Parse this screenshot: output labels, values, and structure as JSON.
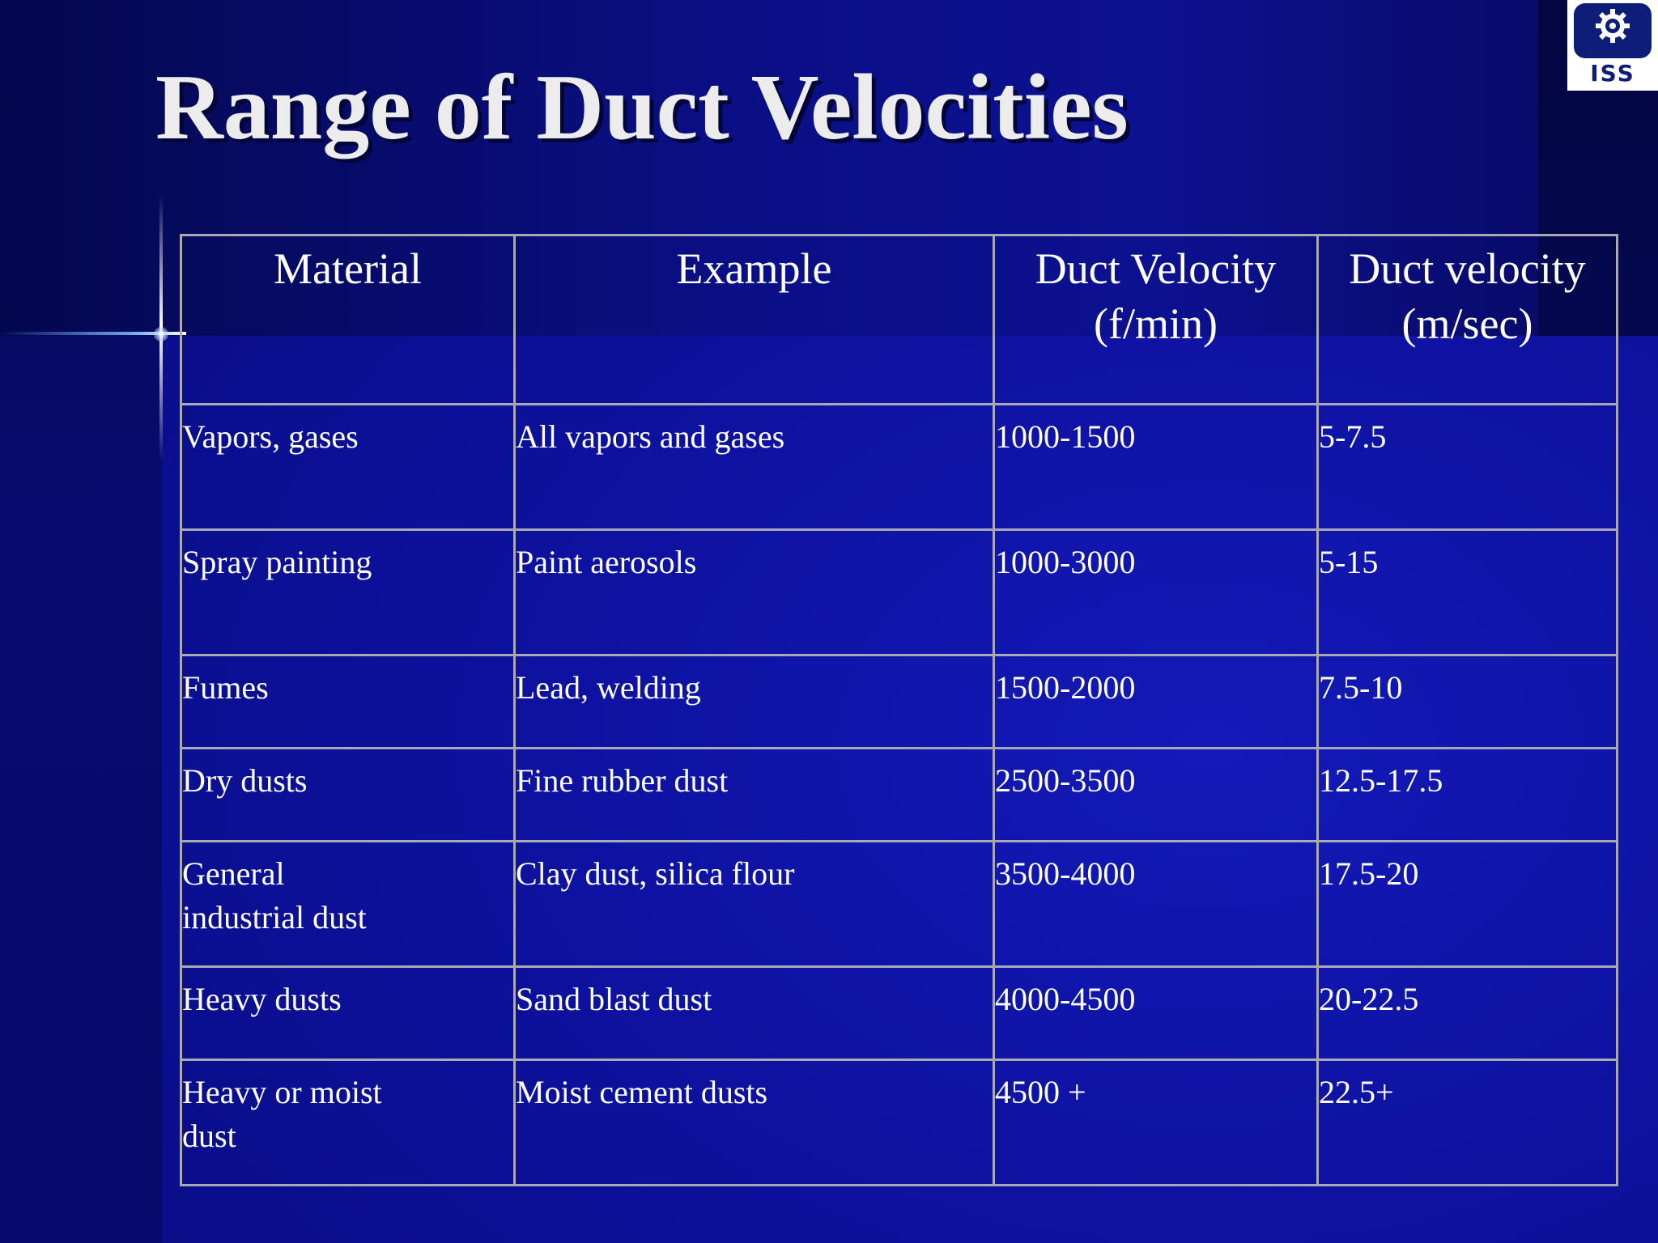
{
  "slide": {
    "title": "Range of Duct Velocities",
    "logo": {
      "text": "ISS",
      "icon": "gear-icon"
    },
    "colors": {
      "background": "#0d12a0",
      "title": "#ececec",
      "text": "#ffffff",
      "grid": "#a9a9b6"
    }
  },
  "table": {
    "headers": {
      "material": "Material",
      "example": "Example",
      "fpm_line1": "Duct Velocity",
      "fpm_line2": "(f/min)",
      "mps_line1": "Duct velocity",
      "mps_line2": "(m/sec)"
    },
    "rows": [
      {
        "material": "Vapors, gases",
        "example": "All vapors and gases",
        "fpm": "1000-1500",
        "mps": "5-7.5"
      },
      {
        "material": "Spray painting",
        "example": "Paint aerosols",
        "fpm": "1000-3000",
        "mps": "5-15"
      },
      {
        "material": "Fumes",
        "example": "Lead, welding",
        "fpm": "1500-2000",
        "mps": "7.5-10"
      },
      {
        "material": "Dry dusts",
        "example": "Fine rubber dust",
        "fpm": "2500-3500",
        "mps": "12.5-17.5"
      },
      {
        "material_line1": "General",
        "material_line2": "industrial dust",
        "example": "Clay dust, silica flour",
        "fpm": "3500-4000",
        "mps": "17.5-20"
      },
      {
        "material": "Heavy dusts",
        "example": "Sand blast dust",
        "fpm": "4000-4500",
        "mps": "20-22.5"
      },
      {
        "material_line1": "Heavy or moist",
        "material_line2": "dust",
        "example": "Moist cement dusts",
        "fpm": "4500 +",
        "mps": "22.5+"
      }
    ]
  }
}
